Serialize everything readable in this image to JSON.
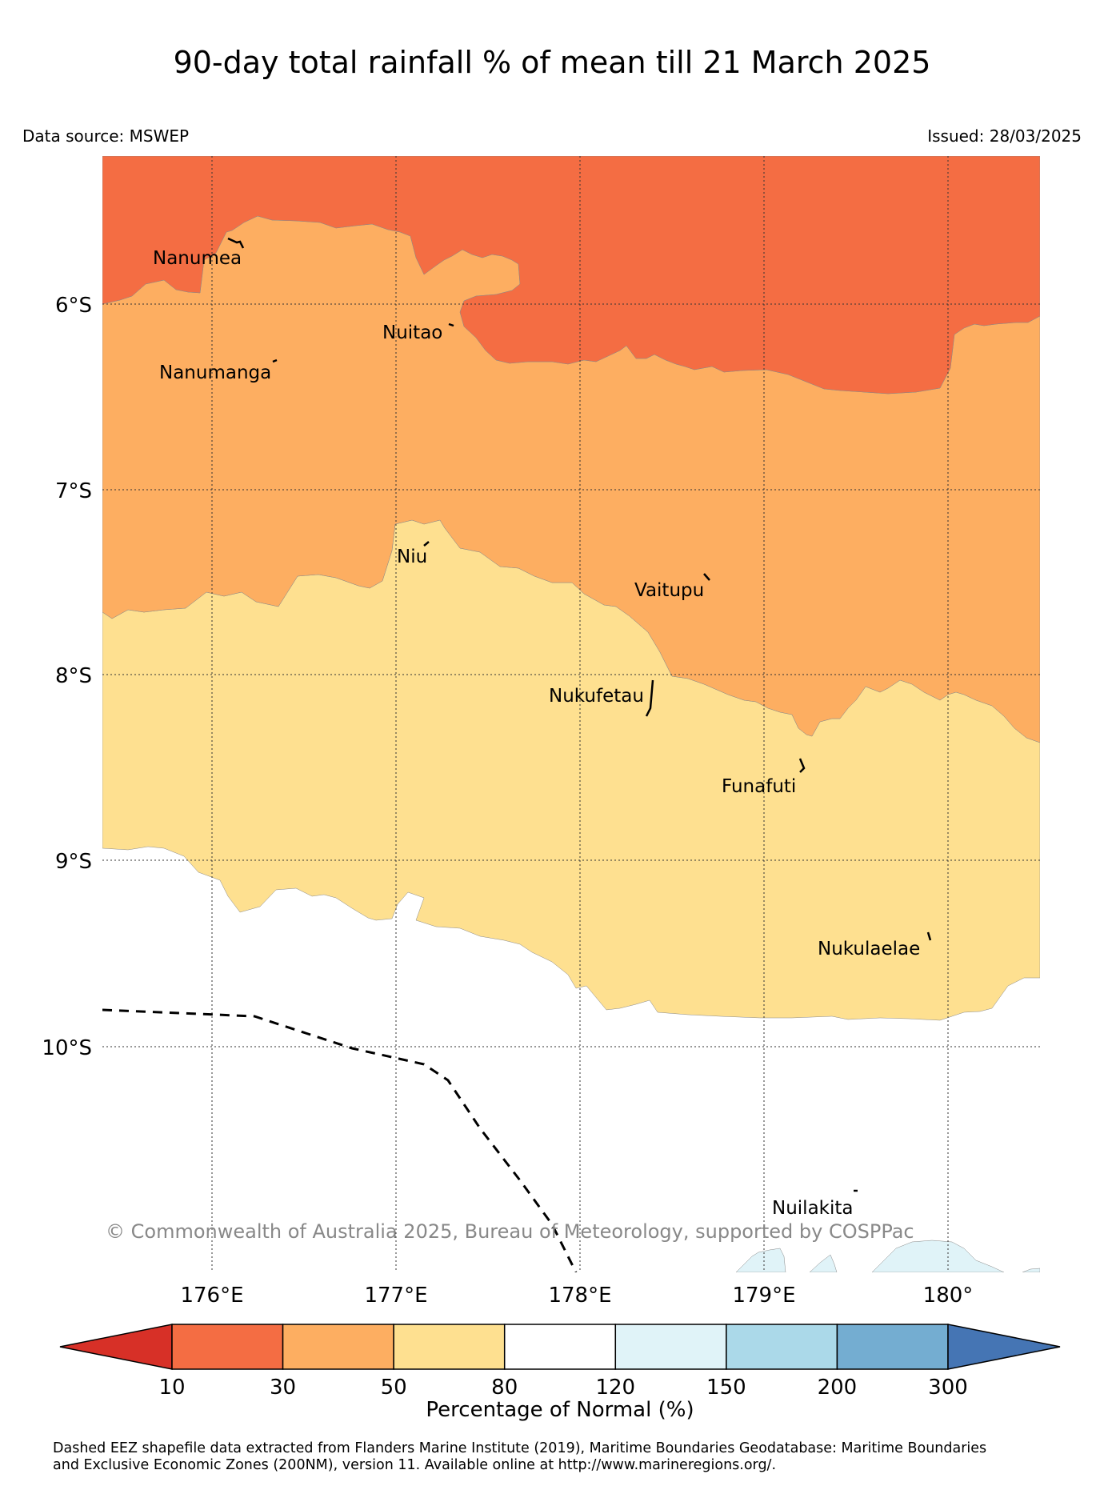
{
  "title": "90-day total rainfall % of mean till 21 March 2025",
  "data_source": "Data source: MSWEP",
  "issued": "Issued: 28/03/2025",
  "copyright": "© Commonwealth of Australia 2025, Bureau of Meteorology, supported by COSPPac",
  "lat_labels": [
    "6°S",
    "7°S",
    "8°S",
    "9°S",
    "10°S"
  ],
  "lon_labels": [
    "176°E",
    "177°E",
    "178°E",
    "179°E",
    "180°"
  ],
  "islands": [
    "Nanumea",
    "Nuitao",
    "Nanumanga",
    "Niu",
    "Vaitupu",
    "Nukufetau",
    "Funafuti",
    "Nukulaelae",
    "Nuilakita"
  ],
  "colorbar": {
    "label": "Percentage of Normal (%)",
    "ticks": [
      "10",
      "30",
      "50",
      "80",
      "120",
      "150",
      "200",
      "300"
    ],
    "colors": [
      "#d73027",
      "#f46d43",
      "#fdae61",
      "#fee090",
      "#ffffff",
      "#e0f3f8",
      "#abd9e9",
      "#74add1",
      "#4575b4"
    ]
  },
  "footnote": [
    "Dashed EEZ shapefile data extracted from Flanders Marine Institute (2019), Maritime Boundaries Geodatabase: Maritime Boundaries",
    "and Exclusive Economic Zones (200NM), version 11. Available online at http://www.marineregions.org/."
  ]
}
